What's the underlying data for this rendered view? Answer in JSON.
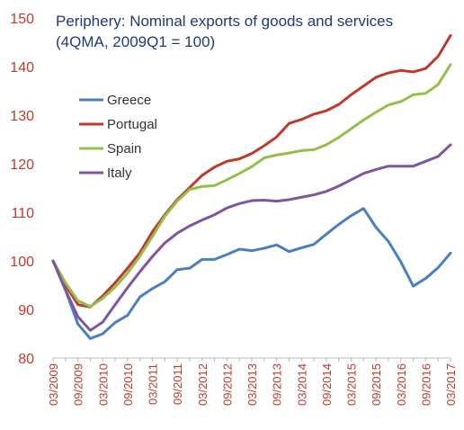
{
  "chart_data": {
    "type": "line",
    "title": "Periphery: Nominal exports of goods and services",
    "subtitle": "(4QMA, 2009Q1 = 100)",
    "ylim": [
      80,
      150
    ],
    "yticks": [
      "80",
      "90",
      "100",
      "110",
      "120",
      "130",
      "140",
      "150"
    ],
    "x": [
      "03/2009",
      "06/2009",
      "09/2009",
      "12/2009",
      "03/2010",
      "06/2010",
      "09/2010",
      "12/2010",
      "03/2011",
      "06/2011",
      "09/2011",
      "12/2011",
      "03/2012",
      "06/2012",
      "09/2012",
      "12/2012",
      "03/2013",
      "06/2013",
      "09/2013",
      "12/2013",
      "03/2014",
      "06/2014",
      "09/2014",
      "12/2014",
      "03/2015",
      "06/2015",
      "09/2015",
      "12/2015",
      "03/2016",
      "06/2016",
      "09/2016",
      "12/2016",
      "03/2017"
    ],
    "xtick_labels": [
      "03/2009",
      "09/2009",
      "03/2010",
      "09/2010",
      "03/2011",
      "09/2011",
      "03/2012",
      "09/2012",
      "03/2013",
      "09/2013",
      "03/2014",
      "09/2014",
      "03/2015",
      "09/2015",
      "03/2016",
      "09/2016",
      "03/2017"
    ],
    "grid": false,
    "legend_position": "upper-left",
    "series": [
      {
        "name": "Greece",
        "color": "#4a7fc1",
        "values": [
          100,
          94,
          87,
          84,
          85,
          87.3,
          88.8,
          92.6,
          94.3,
          95.7,
          98.2,
          98.5,
          100.3,
          100.3,
          101.3,
          102.4,
          102.1,
          102.6,
          103.3,
          101.9,
          102.7,
          103.4,
          105.5,
          107.5,
          109.3,
          110.8,
          106.9,
          104,
          99.8,
          94.8,
          96.4,
          98.6,
          101.6
        ]
      },
      {
        "name": "Portugal",
        "color": "#c0392b",
        "values": [
          100,
          95,
          91,
          90.5,
          92.8,
          95.5,
          98.5,
          101.7,
          106,
          109.5,
          112.6,
          115.1,
          117.6,
          119.3,
          120.5,
          121,
          122.1,
          123.7,
          125.5,
          128.3,
          129.1,
          130.2,
          130.9,
          132.2,
          134.2,
          136,
          137.8,
          138.7,
          139.2,
          138.9,
          139.6,
          142.1,
          146.4
        ]
      },
      {
        "name": "Spain",
        "color": "#92c04a",
        "values": [
          100,
          95.5,
          91.8,
          90.6,
          92.3,
          94.6,
          97.5,
          101,
          105,
          109.2,
          112.3,
          114.7,
          115.3,
          115.5,
          116.7,
          118,
          119.4,
          121.2,
          121.8,
          122.2,
          122.7,
          122.9,
          123.9,
          125.4,
          127.2,
          129,
          130.6,
          132.1,
          132.8,
          134.2,
          134.5,
          136.3,
          140.4
        ]
      },
      {
        "name": "Italy",
        "color": "#7d55a3",
        "values": [
          100,
          94,
          88.5,
          85.7,
          87.4,
          91,
          94.5,
          97.8,
          100.9,
          103.7,
          105.7,
          107.2,
          108.4,
          109.5,
          110.9,
          111.8,
          112.4,
          112.5,
          112.3,
          112.6,
          113.1,
          113.6,
          114.3,
          115.4,
          116.7,
          118,
          118.8,
          119.5,
          119.5,
          119.5,
          120.5,
          121.5,
          123.9
        ]
      }
    ]
  }
}
